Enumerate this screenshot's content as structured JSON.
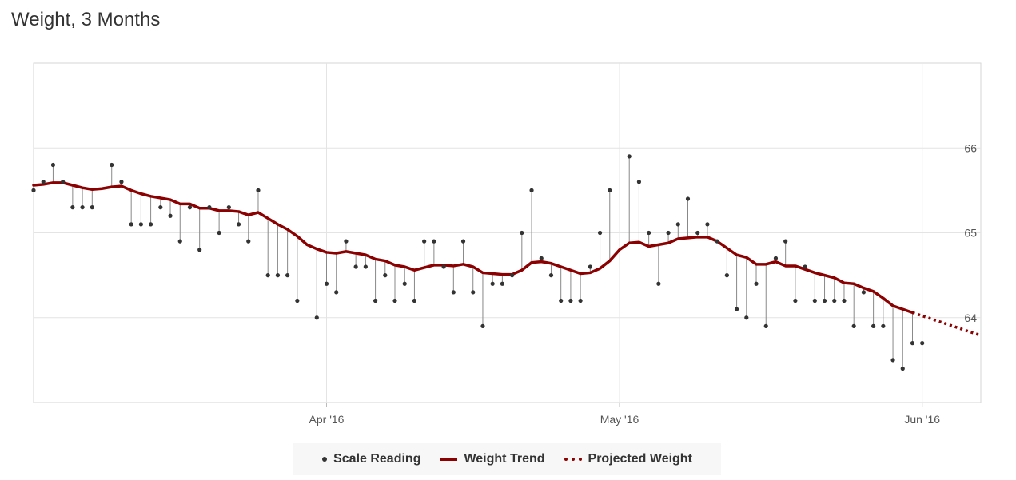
{
  "title": "Weight, 3 Months",
  "legend": {
    "scale": "Scale Reading",
    "trend": "Weight Trend",
    "projected": "Projected Weight"
  },
  "colors": {
    "trend": "#8b0000",
    "reading": "#333333",
    "stem": "#888888",
    "grid": "#e4e4e4"
  },
  "chart_data": {
    "type": "line",
    "title": "Weight, 3 Months",
    "x_range": [
      "2016-03-02",
      "2016-06-07"
    ],
    "ylim": [
      63.0,
      67.0
    ],
    "y_ticks": [
      64,
      65,
      66
    ],
    "x_ticks": [
      {
        "date": "2016-04-01",
        "label": "Apr '16"
      },
      {
        "date": "2016-05-01",
        "label": "May '16"
      },
      {
        "date": "2016-06-01",
        "label": "Jun '16"
      }
    ],
    "grid": true,
    "legend_position": "bottom",
    "series": [
      {
        "name": "Scale Reading",
        "kind": "points",
        "points": [
          [
            "2016-03-02",
            65.5
          ],
          [
            "2016-03-03",
            65.6
          ],
          [
            "2016-03-04",
            65.8
          ],
          [
            "2016-03-05",
            65.6
          ],
          [
            "2016-03-06",
            65.3
          ],
          [
            "2016-03-07",
            65.3
          ],
          [
            "2016-03-08",
            65.3
          ],
          [
            "2016-03-10",
            65.8
          ],
          [
            "2016-03-11",
            65.6
          ],
          [
            "2016-03-12",
            65.1
          ],
          [
            "2016-03-13",
            65.1
          ],
          [
            "2016-03-14",
            65.1
          ],
          [
            "2016-03-15",
            65.3
          ],
          [
            "2016-03-16",
            65.2
          ],
          [
            "2016-03-17",
            64.9
          ],
          [
            "2016-03-18",
            65.3
          ],
          [
            "2016-03-19",
            64.8
          ],
          [
            "2016-03-20",
            65.3
          ],
          [
            "2016-03-21",
            65.0
          ],
          [
            "2016-03-22",
            65.3
          ],
          [
            "2016-03-23",
            65.1
          ],
          [
            "2016-03-24",
            64.9
          ],
          [
            "2016-03-25",
            65.5
          ],
          [
            "2016-03-26",
            64.5
          ],
          [
            "2016-03-27",
            64.5
          ],
          [
            "2016-03-28",
            64.5
          ],
          [
            "2016-03-29",
            64.2
          ],
          [
            "2016-03-31",
            64.0
          ],
          [
            "2016-04-01",
            64.4
          ],
          [
            "2016-04-02",
            64.3
          ],
          [
            "2016-04-03",
            64.9
          ],
          [
            "2016-04-04",
            64.6
          ],
          [
            "2016-04-05",
            64.6
          ],
          [
            "2016-04-06",
            64.2
          ],
          [
            "2016-04-07",
            64.5
          ],
          [
            "2016-04-08",
            64.2
          ],
          [
            "2016-04-09",
            64.4
          ],
          [
            "2016-04-10",
            64.2
          ],
          [
            "2016-04-11",
            64.9
          ],
          [
            "2016-04-12",
            64.9
          ],
          [
            "2016-04-13",
            64.6
          ],
          [
            "2016-04-14",
            64.3
          ],
          [
            "2016-04-15",
            64.9
          ],
          [
            "2016-04-16",
            64.3
          ],
          [
            "2016-04-17",
            63.9
          ],
          [
            "2016-04-18",
            64.4
          ],
          [
            "2016-04-19",
            64.4
          ],
          [
            "2016-04-20",
            64.5
          ],
          [
            "2016-04-21",
            65.0
          ],
          [
            "2016-04-22",
            65.5
          ],
          [
            "2016-04-23",
            64.7
          ],
          [
            "2016-04-24",
            64.5
          ],
          [
            "2016-04-25",
            64.2
          ],
          [
            "2016-04-26",
            64.2
          ],
          [
            "2016-04-27",
            64.2
          ],
          [
            "2016-04-28",
            64.6
          ],
          [
            "2016-04-29",
            65.0
          ],
          [
            "2016-04-30",
            65.5
          ],
          [
            "2016-05-02",
            65.9
          ],
          [
            "2016-05-03",
            65.6
          ],
          [
            "2016-05-04",
            65.0
          ],
          [
            "2016-05-05",
            64.4
          ],
          [
            "2016-05-06",
            65.0
          ],
          [
            "2016-05-07",
            65.1
          ],
          [
            "2016-05-08",
            65.4
          ],
          [
            "2016-05-09",
            65.0
          ],
          [
            "2016-05-10",
            65.1
          ],
          [
            "2016-05-11",
            64.9
          ],
          [
            "2016-05-12",
            64.5
          ],
          [
            "2016-05-13",
            64.1
          ],
          [
            "2016-05-14",
            64.0
          ],
          [
            "2016-05-15",
            64.4
          ],
          [
            "2016-05-16",
            63.9
          ],
          [
            "2016-05-17",
            64.7
          ],
          [
            "2016-05-18",
            64.9
          ],
          [
            "2016-05-19",
            64.2
          ],
          [
            "2016-05-20",
            64.6
          ],
          [
            "2016-05-21",
            64.2
          ],
          [
            "2016-05-22",
            64.2
          ],
          [
            "2016-05-23",
            64.2
          ],
          [
            "2016-05-24",
            64.2
          ],
          [
            "2016-05-25",
            63.9
          ],
          [
            "2016-05-26",
            64.3
          ],
          [
            "2016-05-27",
            63.9
          ],
          [
            "2016-05-28",
            63.9
          ],
          [
            "2016-05-29",
            63.5
          ],
          [
            "2016-05-30",
            63.4
          ],
          [
            "2016-05-31",
            63.7
          ],
          [
            "2016-06-01",
            63.7
          ]
        ]
      },
      {
        "name": "Weight Trend",
        "kind": "line",
        "points": [
          [
            "2016-03-02",
            65.56
          ],
          [
            "2016-03-03",
            65.57
          ],
          [
            "2016-03-04",
            65.59
          ],
          [
            "2016-03-05",
            65.59
          ],
          [
            "2016-03-06",
            65.56
          ],
          [
            "2016-03-07",
            65.53
          ],
          [
            "2016-03-08",
            65.51
          ],
          [
            "2016-03-09",
            65.52
          ],
          [
            "2016-03-10",
            65.54
          ],
          [
            "2016-03-11",
            65.55
          ],
          [
            "2016-03-12",
            65.5
          ],
          [
            "2016-03-13",
            65.46
          ],
          [
            "2016-03-14",
            65.43
          ],
          [
            "2016-03-15",
            65.41
          ],
          [
            "2016-03-16",
            65.39
          ],
          [
            "2016-03-17",
            65.34
          ],
          [
            "2016-03-18",
            65.34
          ],
          [
            "2016-03-19",
            65.29
          ],
          [
            "2016-03-20",
            65.29
          ],
          [
            "2016-03-21",
            65.26
          ],
          [
            "2016-03-22",
            65.26
          ],
          [
            "2016-03-23",
            65.25
          ],
          [
            "2016-03-24",
            65.21
          ],
          [
            "2016-03-25",
            65.24
          ],
          [
            "2016-03-26",
            65.17
          ],
          [
            "2016-03-27",
            65.1
          ],
          [
            "2016-03-28",
            65.04
          ],
          [
            "2016-03-29",
            64.96
          ],
          [
            "2016-03-30",
            64.86
          ],
          [
            "2016-03-31",
            64.81
          ],
          [
            "2016-04-01",
            64.77
          ],
          [
            "2016-04-02",
            64.76
          ],
          [
            "2016-04-03",
            64.78
          ],
          [
            "2016-04-04",
            64.76
          ],
          [
            "2016-04-05",
            64.74
          ],
          [
            "2016-04-06",
            64.69
          ],
          [
            "2016-04-07",
            64.67
          ],
          [
            "2016-04-08",
            64.62
          ],
          [
            "2016-04-09",
            64.6
          ],
          [
            "2016-04-10",
            64.56
          ],
          [
            "2016-04-11",
            64.59
          ],
          [
            "2016-04-12",
            64.62
          ],
          [
            "2016-04-13",
            64.62
          ],
          [
            "2016-04-14",
            64.61
          ],
          [
            "2016-04-15",
            64.63
          ],
          [
            "2016-04-16",
            64.6
          ],
          [
            "2016-04-17",
            64.53
          ],
          [
            "2016-04-18",
            64.52
          ],
          [
            "2016-04-19",
            64.51
          ],
          [
            "2016-04-20",
            64.51
          ],
          [
            "2016-04-21",
            64.56
          ],
          [
            "2016-04-22",
            64.65
          ],
          [
            "2016-04-23",
            64.66
          ],
          [
            "2016-04-24",
            64.64
          ],
          [
            "2016-04-25",
            64.6
          ],
          [
            "2016-04-26",
            64.56
          ],
          [
            "2016-04-27",
            64.52
          ],
          [
            "2016-04-28",
            64.53
          ],
          [
            "2016-04-29",
            64.58
          ],
          [
            "2016-04-30",
            64.67
          ],
          [
            "2016-05-01",
            64.8
          ],
          [
            "2016-05-02",
            64.88
          ],
          [
            "2016-05-03",
            64.89
          ],
          [
            "2016-05-04",
            64.84
          ],
          [
            "2016-05-05",
            64.86
          ],
          [
            "2016-05-06",
            64.88
          ],
          [
            "2016-05-07",
            64.93
          ],
          [
            "2016-05-08",
            64.94
          ],
          [
            "2016-05-09",
            64.95
          ],
          [
            "2016-05-10",
            64.95
          ],
          [
            "2016-05-11",
            64.9
          ],
          [
            "2016-05-12",
            64.82
          ],
          [
            "2016-05-13",
            64.74
          ],
          [
            "2016-05-14",
            64.71
          ],
          [
            "2016-05-15",
            64.63
          ],
          [
            "2016-05-16",
            64.63
          ],
          [
            "2016-05-17",
            64.66
          ],
          [
            "2016-05-18",
            64.61
          ],
          [
            "2016-05-19",
            64.61
          ],
          [
            "2016-05-20",
            64.57
          ],
          [
            "2016-05-21",
            64.53
          ],
          [
            "2016-05-22",
            64.5
          ],
          [
            "2016-05-23",
            64.47
          ],
          [
            "2016-05-24",
            64.41
          ],
          [
            "2016-05-25",
            64.4
          ],
          [
            "2016-05-26",
            64.35
          ],
          [
            "2016-05-27",
            64.31
          ],
          [
            "2016-05-28",
            64.23
          ],
          [
            "2016-05-29",
            64.14
          ],
          [
            "2016-05-30",
            64.1
          ],
          [
            "2016-05-31",
            64.06
          ]
        ]
      },
      {
        "name": "Projected Weight",
        "kind": "dotted-line",
        "points": [
          [
            "2016-05-31",
            64.06
          ],
          [
            "2016-06-07",
            63.79
          ]
        ]
      }
    ]
  }
}
